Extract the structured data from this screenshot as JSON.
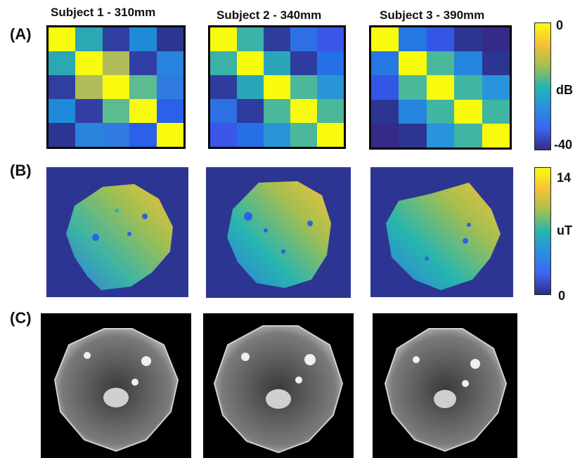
{
  "figure": {
    "row_labels": {
      "a": "(A)",
      "b": "(B)",
      "c": "(C)"
    },
    "subjects": [
      {
        "title": "Subject 1 - 310mm"
      },
      {
        "title": "Subject 2 - 340mm"
      },
      {
        "title": "Subject 3 - 390mm"
      }
    ],
    "colorbars": {
      "a": {
        "top_label": "0",
        "unit": "dB",
        "bottom_label": "-40",
        "gradient": [
          "#f9fb0e",
          "#f5c13a",
          "#a6bf4e",
          "#27b5b0",
          "#2b8ee2",
          "#3a67f0",
          "#352a87"
        ]
      },
      "b": {
        "top_label": "14",
        "unit": "uT",
        "bottom_label": "0",
        "gradient": [
          "#f9fb0e",
          "#f5c13a",
          "#a6bf4e",
          "#27b5b0",
          "#2b8ee2",
          "#3a67f0",
          "#352a87"
        ]
      }
    },
    "coupling_matrices": [
      [
        [
          "#f9fb0e",
          "#2ca7b4",
          "#303ea0",
          "#1f8bd8",
          "#2d3593"
        ],
        [
          "#2ca7b4",
          "#f9fb0e",
          "#b0bb5a",
          "#323ea3",
          "#2884dc"
        ],
        [
          "#303ea0",
          "#b0bb5a",
          "#f9fb0e",
          "#5dbb90",
          "#2f7be0"
        ],
        [
          "#1f8bd8",
          "#323ea3",
          "#5dbb90",
          "#f9fb0e",
          "#2b60e8"
        ],
        [
          "#2d3593",
          "#2884dc",
          "#2f7be0",
          "#2b60e8",
          "#f9fb0e"
        ]
      ],
      [
        [
          "#f9fb0e",
          "#3bb2a8",
          "#2e3c9c",
          "#2d70e4",
          "#3b56e8"
        ],
        [
          "#3bb2a8",
          "#f9fb0e",
          "#2ba6b8",
          "#2d3c9e",
          "#2570e6"
        ],
        [
          "#2e3c9c",
          "#2ba6b8",
          "#f9fb0e",
          "#4bb89a",
          "#2a95d6"
        ],
        [
          "#2d70e4",
          "#2d3c9e",
          "#4bb89a",
          "#f9fb0e",
          "#4bb89a"
        ],
        [
          "#3b56e8",
          "#2570e6",
          "#2a95d6",
          "#4bb89a",
          "#f9fb0e"
        ]
      ],
      [
        [
          "#f9fb0e",
          "#2577e2",
          "#3456e6",
          "#2d3593",
          "#352a87"
        ],
        [
          "#2577e2",
          "#f9fb0e",
          "#4bb89a",
          "#2584de",
          "#2d3593"
        ],
        [
          "#3456e6",
          "#4bb89a",
          "#f9fb0e",
          "#3fb5a2",
          "#2794dc"
        ],
        [
          "#2d3593",
          "#2584de",
          "#3fb5a2",
          "#f9fb0e",
          "#3fb5a2"
        ],
        [
          "#352a87",
          "#2d3593",
          "#2794dc",
          "#3fb5a2",
          "#f9fb0e"
        ]
      ]
    ]
  }
}
